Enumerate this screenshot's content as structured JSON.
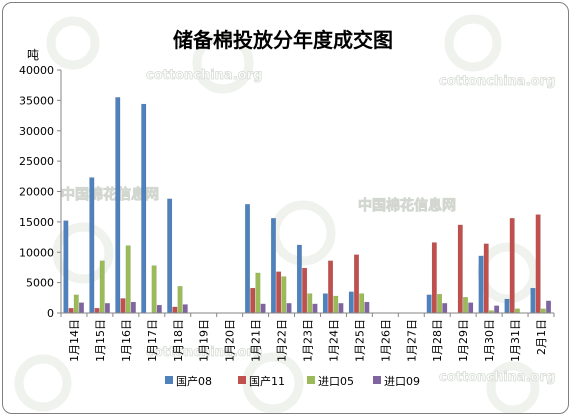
{
  "chart_data": {
    "type": "bar",
    "title": "储备棉投放分年度成交图",
    "ylabel": "吨",
    "xlabel": "",
    "ylim": [
      0,
      40000
    ],
    "yticks": [
      0,
      5000,
      10000,
      15000,
      20000,
      25000,
      30000,
      35000,
      40000
    ],
    "grid": false,
    "legend_position": "bottom",
    "categories": [
      "1月14日",
      "1月15日",
      "1月16日",
      "1月17日",
      "1月18日",
      "1月19日",
      "1月20日",
      "1月21日",
      "1月22日",
      "1月23日",
      "1月24日",
      "1月25日",
      "1月26日",
      "1月27日",
      "1月28日",
      "1月29日",
      "1月30日",
      "1月31日",
      "2月1日"
    ],
    "series": [
      {
        "name": "国产08",
        "color": "#4f81bd",
        "values": [
          15200,
          22300,
          35500,
          34400,
          18800,
          0,
          0,
          17900,
          15600,
          11200,
          3200,
          3500,
          0,
          0,
          3000,
          0,
          9400,
          2300,
          4100
        ]
      },
      {
        "name": "国产11",
        "color": "#c0504d",
        "values": [
          800,
          800,
          2400,
          0,
          1000,
          0,
          0,
          4100,
          6800,
          7400,
          8600,
          9600,
          0,
          0,
          11600,
          14500,
          11400,
          15600,
          16200
        ]
      },
      {
        "name": "进口05",
        "color": "#9bbb59",
        "values": [
          3000,
          8600,
          11100,
          7800,
          4400,
          0,
          0,
          6600,
          6000,
          3200,
          2800,
          3200,
          0,
          0,
          3100,
          2600,
          400,
          700,
          700
        ]
      },
      {
        "name": "进口09",
        "color": "#8064a2",
        "values": [
          1700,
          1600,
          1800,
          1300,
          1400,
          0,
          0,
          1500,
          1600,
          1500,
          1600,
          1800,
          0,
          0,
          1600,
          1700,
          1200,
          0,
          2000
        ]
      }
    ]
  },
  "watermarks": [
    "cottonchina.org",
    "cottonchina.org",
    "中国棉花信息网",
    "中国棉花信息网",
    "cottonchina.org",
    "cottonchina.org"
  ]
}
